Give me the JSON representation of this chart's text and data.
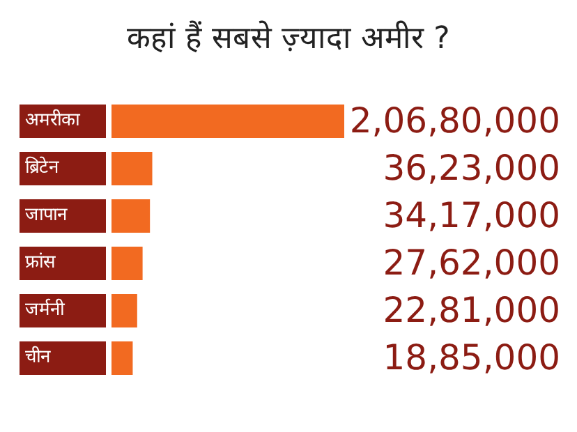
{
  "chart_data": {
    "type": "bar",
    "orientation": "horizontal",
    "title": "कहां हैं सबसे ज़्यादा अमीर ?",
    "categories": [
      "अमरीका",
      "ब्रिटेन",
      "जापान",
      "फ्रांस",
      "जर्मनी",
      "चीन"
    ],
    "values": [
      20680000,
      3623000,
      3417000,
      2762000,
      2281000,
      1885000
    ],
    "value_labels": [
      "2,06,80,000",
      "36,23,000",
      "34,17,000",
      "27,62,000",
      "22,81,000",
      "18,85,000"
    ],
    "color": "#f26a21"
  }
}
